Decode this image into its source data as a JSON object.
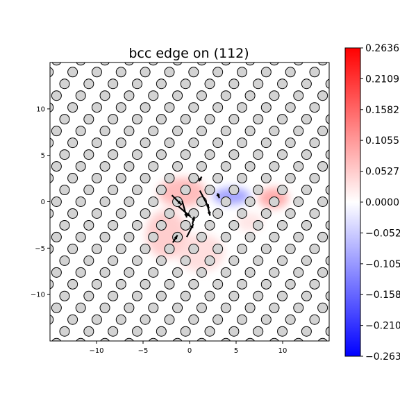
{
  "chart_data": {
    "type": "heatmap",
    "title": "bcc edge on (112)",
    "xlabel": "",
    "ylabel": "",
    "xlim": [
      -15,
      15
    ],
    "ylim": [
      -15,
      15
    ],
    "xticks": [
      -10,
      -5,
      0,
      5,
      10
    ],
    "yticks": [
      10,
      5,
      0,
      -5,
      -10
    ],
    "xtick_labels": [
      "−10",
      "−5",
      "0",
      "5",
      "10"
    ],
    "ytick_labels": [
      "10",
      "5",
      "0",
      "−5",
      "−10"
    ],
    "colormap": "bwr",
    "colorbar": {
      "min": -0.2636,
      "max": 0.2636,
      "ticks": [
        0.2636,
        0.2109,
        0.1582,
        0.1055,
        0.0527,
        0.0,
        -0.0527,
        -0.1055,
        -0.1582,
        -0.2109,
        -0.2636
      ],
      "tick_labels": [
        "0.2636",
        "0.2109",
        "0.1582",
        "0.1055",
        "0.0527",
        "0.0000",
        "−0.0527",
        "−0.1055",
        "−0.1582",
        "−0.2109",
        "−0.2636"
      ]
    },
    "field_blobs": [
      {
        "x": -0.8,
        "y": 1.0,
        "value": 0.08,
        "sx": 2.6,
        "sy": 1.6
      },
      {
        "x": -2.5,
        "y": -3.5,
        "value": 0.06,
        "sx": 2.2,
        "sy": 2.6
      },
      {
        "x": 1.2,
        "y": -5.5,
        "value": 0.04,
        "sx": 2.5,
        "sy": 2.0
      },
      {
        "x": 4.5,
        "y": 0.6,
        "value": -0.11,
        "sx": 2.0,
        "sy": 0.9
      },
      {
        "x": 9.0,
        "y": 0.4,
        "value": 0.1,
        "sx": 1.6,
        "sy": 1.1
      },
      {
        "x": 6.5,
        "y": -2.2,
        "value": 0.03,
        "sx": 1.4,
        "sy": 1.0
      }
    ],
    "atoms": {
      "a": 2.6,
      "row_spacing": 1.27,
      "rows_per_period": 3,
      "dislocation_core": [
        0.0,
        0.0
      ]
    },
    "displacement_arrows": [
      {
        "x": -1.9,
        "y": 0.7,
        "dx": 1.0,
        "dy": -1.0
      },
      {
        "x": -0.8,
        "y": 0.1,
        "dx": 0.5,
        "dy": -1.8
      },
      {
        "x": -1.2,
        "y": -0.5,
        "dx": 1.3,
        "dy": -1.1
      },
      {
        "x": 1.1,
        "y": 1.2,
        "dx": 1.0,
        "dy": -1.9
      },
      {
        "x": 1.9,
        "y": -0.3,
        "dx": 0.3,
        "dy": -1.2
      },
      {
        "x": -0.3,
        "y": -3.8,
        "dx": 0.7,
        "dy": 1.4
      },
      {
        "x": -1.8,
        "y": -4.4,
        "dx": 0.5,
        "dy": 0.8
      },
      {
        "x": 0.3,
        "y": -2.4,
        "dx": 0.2,
        "dy": 0.8
      },
      {
        "x": 1.0,
        "y": 2.2,
        "dx": 0.3,
        "dy": 0.5
      },
      {
        "x": 3.0,
        "y": 0.9,
        "dx": 0.2,
        "dy": -0.5
      }
    ]
  }
}
